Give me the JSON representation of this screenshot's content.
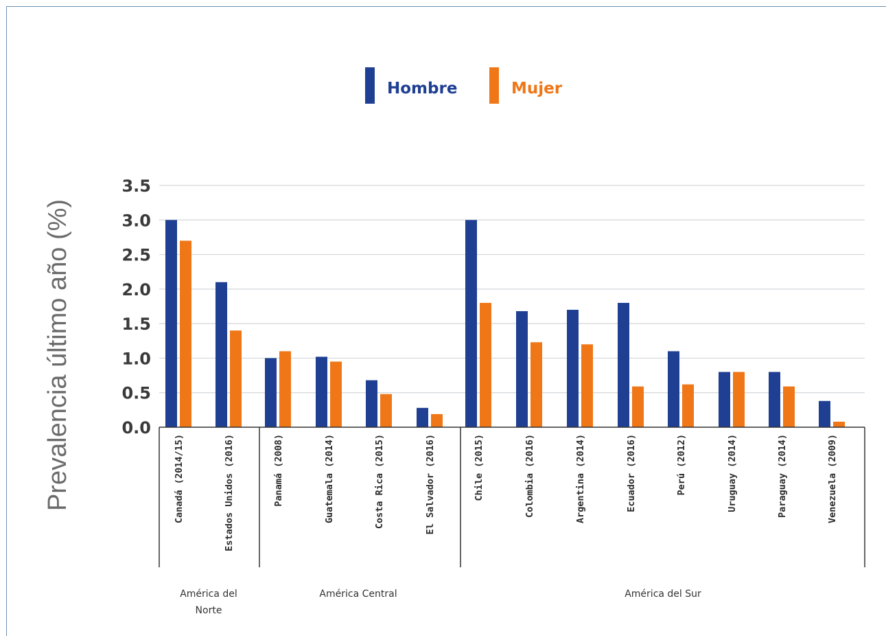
{
  "colors": {
    "hombre": "#1f3f93",
    "mujer": "#ef7718",
    "grid": "#d3d6da",
    "axis": "#333333"
  },
  "chart_data": {
    "type": "bar",
    "ylabel": "Prevalencia último año (%)",
    "ylim": [
      0,
      3.5
    ],
    "yticks": [
      "0.0",
      "0.5",
      "1.0",
      "1.5",
      "2.0",
      "2.5",
      "3.0",
      "3.5"
    ],
    "grid": true,
    "legend_position": "top",
    "categories": [
      "Canadá (2014/15)",
      "Estados Unidos (2016)",
      "Panamá (2008)",
      "Guatemala (2014)",
      "Costa Rica (2015)",
      "El Salvador (2016)",
      "Chile (2015)",
      "Colombia (2016)",
      "Argentina (2014)",
      "Ecuador (2016)",
      "Perú (2012)",
      "Uruguay (2014)",
      "Paraguay (2014)",
      "Venezuela (2009)"
    ],
    "series": [
      {
        "name": "Hombre",
        "values": [
          3.0,
          2.1,
          1.0,
          1.02,
          0.68,
          0.28,
          3.0,
          1.68,
          1.7,
          1.8,
          1.1,
          0.8,
          0.8,
          0.38
        ]
      },
      {
        "name": "Mujer",
        "values": [
          2.7,
          1.4,
          1.1,
          0.95,
          0.48,
          0.19,
          1.8,
          1.23,
          1.2,
          0.59,
          0.62,
          0.8,
          0.59,
          0.08
        ]
      }
    ],
    "groups": [
      {
        "label": "América del\nNorte",
        "count": 2
      },
      {
        "label": "América Central",
        "count": 4
      },
      {
        "label": "América del Sur",
        "count": 8
      }
    ]
  }
}
